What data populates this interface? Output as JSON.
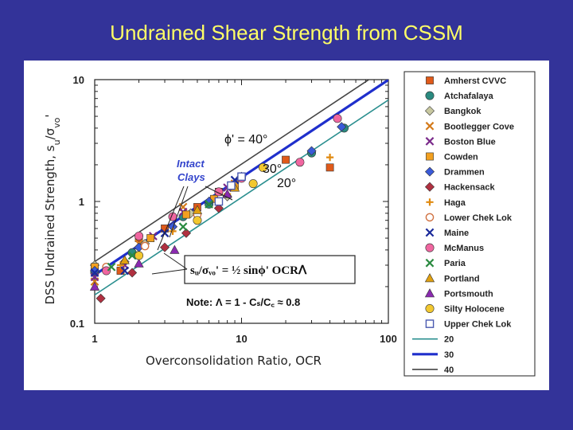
{
  "slide": {
    "title": "Undrained Shear Strength from CSSM"
  },
  "chart_data": {
    "type": "scatter",
    "xscale": "log",
    "yscale": "log",
    "xlim": [
      1,
      100
    ],
    "ylim": [
      0.1,
      10
    ],
    "x_ticks": [
      "1",
      "10",
      "100"
    ],
    "y_ticks": [
      "10",
      "1",
      "0.1"
    ],
    "xlabel": "Overconsolidation Ratio, OCR",
    "ylabel": "DSS Undrained Strength, s",
    "ylabel_sub": "u",
    "ylabel_slash": "/σ",
    "ylabel_sub2": "vo",
    "ylabel_prime": "'",
    "lines": [
      {
        "name": "20",
        "phi_deg": 20,
        "intercept": 0.171,
        "slope": 0.8,
        "color": "#2b8f8f",
        "width": 1.6
      },
      {
        "name": "30",
        "phi_deg": 30,
        "intercept": 0.25,
        "slope": 0.8,
        "color": "#1f2fcc",
        "width": 3.2
      },
      {
        "name": "40",
        "phi_deg": 40,
        "intercept": 0.321,
        "slope": 0.8,
        "color": "#444444",
        "width": 1.6
      }
    ],
    "series": [
      {
        "name": "Amherst CVVC",
        "marker": "square",
        "color": "#e05a1a",
        "points": [
          [
            1,
            0.28
          ],
          [
            1.5,
            0.27
          ],
          [
            2,
            0.5
          ],
          [
            3,
            0.6
          ],
          [
            5,
            0.9
          ],
          [
            7,
            1.2
          ],
          [
            40,
            1.9
          ],
          [
            20,
            2.2
          ]
        ]
      },
      {
        "name": "Atchafalaya",
        "marker": "circle",
        "color": "#2a8a80",
        "points": [
          [
            1,
            0.26
          ],
          [
            1.8,
            0.38
          ],
          [
            4,
            0.75
          ],
          [
            6,
            0.95
          ],
          [
            30,
            2.5
          ],
          [
            50,
            4.0
          ]
        ]
      },
      {
        "name": "Bangkok",
        "marker": "diamond",
        "color": "#c8c8a0",
        "points": [
          [
            1,
            0.3
          ],
          [
            1.6,
            0.32
          ],
          [
            2.2,
            0.45
          ],
          [
            4.5,
            0.8
          ],
          [
            8,
            1.1
          ]
        ]
      },
      {
        "name": "Bootlegger Cove",
        "marker": "x",
        "color": "#d47a1a",
        "points": [
          [
            1,
            0.22
          ],
          [
            2,
            0.45
          ],
          [
            4,
            0.9
          ],
          [
            9,
            1.4
          ]
        ]
      },
      {
        "name": "Boston Blue",
        "marker": "x",
        "color": "#7a2a8a",
        "points": [
          [
            1,
            0.24
          ],
          [
            1.6,
            0.3
          ],
          [
            2.5,
            0.52
          ],
          [
            4,
            0.82
          ],
          [
            8,
            1.3
          ]
        ]
      },
      {
        "name": "Cowden",
        "marker": "square",
        "color": "#f2a020",
        "points": [
          [
            1,
            0.29
          ],
          [
            2.4,
            0.5
          ],
          [
            4.2,
            0.78
          ],
          [
            6.5,
            1.05
          ],
          [
            9,
            1.35
          ]
        ]
      },
      {
        "name": "Drammen",
        "marker": "diamond",
        "color": "#3a5ad8",
        "points": [
          [
            1,
            0.27
          ],
          [
            2,
            0.42
          ],
          [
            3.4,
            0.62
          ],
          [
            6,
            1.0
          ],
          [
            10,
            1.6
          ],
          [
            30,
            2.6
          ],
          [
            48,
            4.1
          ]
        ]
      },
      {
        "name": "Hackensack",
        "marker": "diamond",
        "color": "#b03040",
        "points": [
          [
            1.1,
            0.16
          ],
          [
            1.8,
            0.26
          ],
          [
            3,
            0.42
          ],
          [
            4.2,
            0.55
          ],
          [
            7,
            0.88
          ]
        ]
      },
      {
        "name": "Haga",
        "marker": "plus",
        "color": "#e08a10",
        "points": [
          [
            1.5,
            0.3
          ],
          [
            3.4,
            0.57
          ],
          [
            8,
            1.15
          ],
          [
            40,
            2.3
          ]
        ]
      },
      {
        "name": "Lower Chek Lok",
        "marker": "circle-open",
        "color": "#d07040",
        "points": [
          [
            1.2,
            0.29
          ],
          [
            2.2,
            0.43
          ],
          [
            5,
            0.78
          ]
        ]
      },
      {
        "name": "Maine",
        "marker": "x",
        "color": "#1a2a9a",
        "points": [
          [
            1,
            0.26
          ],
          [
            1.6,
            0.27
          ],
          [
            3,
            0.55
          ],
          [
            9,
            1.5
          ]
        ]
      },
      {
        "name": "McManus",
        "marker": "circle",
        "color": "#f066a0",
        "points": [
          [
            1.2,
            0.27
          ],
          [
            2,
            0.52
          ],
          [
            3.4,
            0.75
          ],
          [
            7,
            1.2
          ],
          [
            10,
            1.55
          ],
          [
            25,
            2.1
          ],
          [
            45,
            4.8
          ]
        ]
      },
      {
        "name": "Paria",
        "marker": "x",
        "color": "#2a8a40",
        "points": [
          [
            1.3,
            0.29
          ],
          [
            1.8,
            0.36
          ],
          [
            4,
            0.62
          ],
          [
            6,
            0.95
          ]
        ]
      },
      {
        "name": "Portland",
        "marker": "triangle",
        "color": "#e0a010",
        "points": [
          [
            1.6,
            0.33
          ],
          [
            5,
            0.85
          ],
          [
            9,
            1.3
          ]
        ]
      },
      {
        "name": "Portsmouth",
        "marker": "triangle",
        "color": "#8a2ab0",
        "points": [
          [
            1,
            0.2
          ],
          [
            2,
            0.31
          ],
          [
            3.5,
            0.4
          ],
          [
            8,
            1.15
          ]
        ]
      },
      {
        "name": "Silty Holocene",
        "marker": "circle",
        "color": "#f2c830",
        "points": [
          [
            2,
            0.36
          ],
          [
            5,
            0.7
          ],
          [
            12,
            1.4
          ],
          [
            14,
            1.9
          ]
        ]
      },
      {
        "name": "Upper Chek Lok",
        "marker": "square-open",
        "color": "#4a5ab0",
        "points": [
          [
            7,
            1.0
          ],
          [
            8.5,
            1.35
          ],
          [
            10,
            1.6
          ]
        ]
      }
    ],
    "annotations": {
      "intact_1": "Intact",
      "intact_2": "Clays",
      "phi_40": "ϕ' = 40°",
      "phi_30": "30°",
      "phi_20": "20°",
      "equation": "sᵤ/σᵥₒ'  =  ½ sinϕ' OCRᐱ",
      "note": "Note:  Λ  = 1 - Cₛ/C꜀  ≈  0.8"
    }
  },
  "legend": {
    "items": [
      {
        "label": "Amherst CVVC",
        "marker": "square",
        "color": "#e05a1a"
      },
      {
        "label": "Atchafalaya",
        "marker": "circle",
        "color": "#2a8a80"
      },
      {
        "label": "Bangkok",
        "marker": "diamond",
        "color": "#c8c8a0"
      },
      {
        "label": "Bootlegger Cove",
        "marker": "x",
        "color": "#d47a1a"
      },
      {
        "label": "Boston Blue",
        "marker": "x",
        "color": "#7a2a8a"
      },
      {
        "label": "Cowden",
        "marker": "square",
        "color": "#f2a020"
      },
      {
        "label": "Drammen",
        "marker": "diamond",
        "color": "#3a5ad8"
      },
      {
        "label": "Hackensack",
        "marker": "diamond",
        "color": "#b03040"
      },
      {
        "label": "Haga",
        "marker": "plus",
        "color": "#e08a10"
      },
      {
        "label": "Lower Chek Lok",
        "marker": "circle-open",
        "color": "#d07040"
      },
      {
        "label": "Maine",
        "marker": "x",
        "color": "#1a2a9a"
      },
      {
        "label": "McManus",
        "marker": "circle",
        "color": "#f066a0"
      },
      {
        "label": "Paria",
        "marker": "x",
        "color": "#2a8a40"
      },
      {
        "label": "Portland",
        "marker": "triangle",
        "color": "#e0a010"
      },
      {
        "label": "Portsmouth",
        "marker": "triangle",
        "color": "#8a2ab0"
      },
      {
        "label": "Silty Holocene",
        "marker": "circle",
        "color": "#f2c830"
      },
      {
        "label": "Upper Chek Lok",
        "marker": "square-open",
        "color": "#4a5ab0"
      }
    ],
    "line_items": [
      {
        "label": "20",
        "color": "#2b8f8f",
        "width": 1.6
      },
      {
        "label": "30",
        "color": "#1f2fcc",
        "width": 3.2
      },
      {
        "label": "40",
        "color": "#444444",
        "width": 1.6
      }
    ]
  }
}
